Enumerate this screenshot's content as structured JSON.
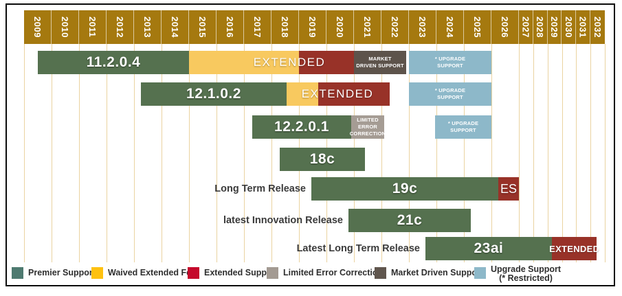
{
  "figure": {
    "background": "#FFFFFF",
    "axis_header_color": "#A5790F",
    "gridline_color": "#EAD3A0",
    "frame_border_color": "#0A0A0A"
  },
  "chart_data": {
    "type": "gantt",
    "x_axis": {
      "unit": "year",
      "start": 2009,
      "end": 2033,
      "compressed_from": 2027,
      "tick_labels": [
        "2009",
        "2010",
        "2011",
        "2012",
        "2013",
        "2014",
        "2015",
        "2016",
        "2017",
        "2018",
        "2019",
        "2020",
        "2021",
        "2022",
        "2023",
        "2024",
        "2025",
        "2026",
        "2027",
        "2028",
        "2029",
        "2030",
        "2031",
        "2032"
      ]
    },
    "bar_colors": {
      "premier": "#55714F",
      "waived": "#F8C95F",
      "extended": "#983228",
      "limited": "#A59C94",
      "market": "#5D534B",
      "upgrade": "#8DB8C9"
    },
    "rows": [
      {
        "name": "11.2.0.4",
        "row_label": "",
        "segments": [
          {
            "kind": "premier",
            "start": 2009.5,
            "end": 2015.0,
            "label": "11.2.0.4",
            "text": "lg"
          },
          {
            "kind": "waived",
            "start": 2015.0,
            "end": 2019.0,
            "label": "",
            "text": ""
          },
          {
            "kind": "extended",
            "start": 2019.0,
            "end": 2021.0,
            "label": "",
            "text": ""
          },
          {
            "kind": "market",
            "start": 2021.0,
            "end": 2022.9,
            "label": "MARKET\nDRIVEN SUPPORT",
            "text": "sm"
          },
          {
            "kind": "upgrade",
            "start": 2023.0,
            "end": 2026.0,
            "label": "* UPGRADE\nSUPPORT",
            "text": "sm"
          }
        ],
        "overlays": [
          {
            "text": "EXTENDED",
            "center_year": 2018.65
          }
        ]
      },
      {
        "name": "12.1.0.2",
        "row_label": "",
        "segments": [
          {
            "kind": "premier",
            "start": 2013.25,
            "end": 2018.55,
            "label": "12.1.0.2",
            "text": "lg"
          },
          {
            "kind": "waived",
            "start": 2018.55,
            "end": 2019.7,
            "label": "",
            "text": ""
          },
          {
            "kind": "extended",
            "start": 2019.7,
            "end": 2022.3,
            "label": "",
            "text": ""
          },
          {
            "kind": "upgrade",
            "start": 2023.0,
            "end": 2026.0,
            "label": "* UPGRADE\nSUPPORT",
            "text": "sm"
          }
        ],
        "overlays": [
          {
            "text": "EXTENDED",
            "center_year": 2020.4
          }
        ]
      },
      {
        "name": "12.2.0.1",
        "row_label": "",
        "segments": [
          {
            "kind": "premier",
            "start": 2017.3,
            "end": 2020.9,
            "label": "12.2.0.1",
            "text": "lg"
          },
          {
            "kind": "limited",
            "start": 2020.9,
            "end": 2022.1,
            "label": "LIMITED ERROR\nCORRECTION",
            "text": "sm"
          },
          {
            "kind": "upgrade",
            "start": 2023.95,
            "end": 2026.0,
            "label": "* UPGRADE\nSUPPORT",
            "text": "sm"
          }
        ],
        "overlays": []
      },
      {
        "name": "18c",
        "row_label": "",
        "segments": [
          {
            "kind": "premier",
            "start": 2018.3,
            "end": 2021.4,
            "label": "18c",
            "text": "lg"
          }
        ],
        "overlays": []
      },
      {
        "name": "19c",
        "row_label": "Long Term Release",
        "segments": [
          {
            "kind": "premier",
            "start": 2019.45,
            "end": 2026.25,
            "label": "19c",
            "text": "lg"
          },
          {
            "kind": "extended",
            "start": 2026.25,
            "end": 2027.0,
            "label": "ES",
            "text": "md"
          }
        ],
        "overlays": []
      },
      {
        "name": "21c",
        "row_label": "latest Innovation Release",
        "segments": [
          {
            "kind": "premier",
            "start": 2020.8,
            "end": 2025.25,
            "label": "21c",
            "text": "lg"
          }
        ],
        "overlays": []
      },
      {
        "name": "23ai",
        "row_label": "Latest Long Term Release",
        "segments": [
          {
            "kind": "premier",
            "start": 2023.6,
            "end": 2029.3,
            "label": "23ai",
            "text": "lg"
          },
          {
            "kind": "extended",
            "start": 2029.3,
            "end": 2032.45,
            "label": "EXTENDED",
            "text": "md2"
          }
        ],
        "overlays": []
      }
    ],
    "legend": [
      {
        "key": "premier",
        "label": "Premier Support",
        "label2": "",
        "color": "#4E7A70"
      },
      {
        "key": "waived",
        "label": "Waived Extended Fee",
        "label2": "",
        "color": "#FEC110"
      },
      {
        "key": "extended",
        "label": "Extended Support",
        "label2": "",
        "color": "#C5092B"
      },
      {
        "key": "limited",
        "label": "Limited Error Correction",
        "label2": "",
        "color": "#A39A92"
      },
      {
        "key": "market",
        "label": "Market Driven Support",
        "label2": "",
        "color": "#60564E"
      },
      {
        "key": "upgrade",
        "label": "Upgrade Support",
        "label2": "(* Restricted)",
        "color": "#8DB8C9"
      }
    ]
  }
}
